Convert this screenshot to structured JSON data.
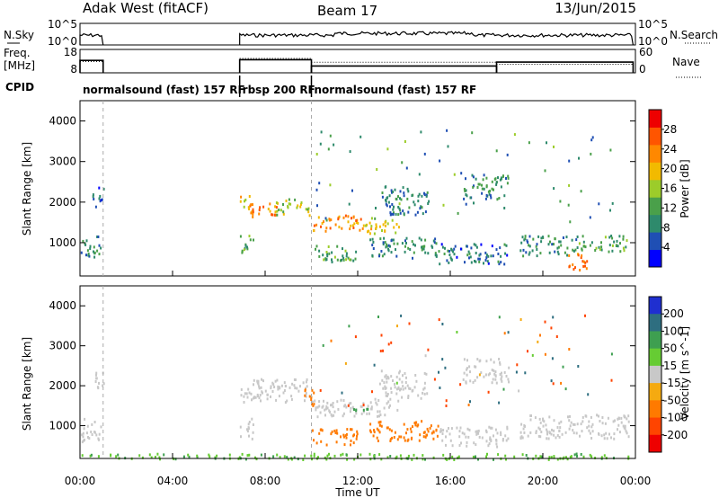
{
  "header": {
    "station": "Adak West (fitACF)",
    "beam": "Beam 17",
    "date": "13/Jun/2015"
  },
  "noise_panel": {
    "left_label": "N.Sky",
    "right_label": "N.Search",
    "left_ticks": [
      "10^5",
      "10^0"
    ],
    "right_ticks": [
      "10^5",
      "10^0"
    ],
    "level_fraction": 0.45,
    "data_intervals_ut_hours": [
      [
        0.0,
        1.0
      ],
      [
        6.9,
        23.9
      ]
    ]
  },
  "freq_panel": {
    "left_label_top": "Freq.",
    "left_label_bottom": "[MHz]",
    "right_label": "Nave",
    "left_ticks": [
      "18",
      "8"
    ],
    "right_ticks": [
      "60",
      "0"
    ],
    "freq_ylim": [
      8,
      18
    ],
    "nave_ylim": [
      0,
      60
    ],
    "freq_segments": [
      {
        "start": 0.0,
        "end": 1.0,
        "freq": 13.3
      },
      {
        "start": 6.9,
        "end": 10.0,
        "freq": 13.6
      },
      {
        "start": 10.0,
        "end": 18.0,
        "freq": 10.9
      },
      {
        "start": 18.0,
        "end": 23.9,
        "freq": 12.6
      }
    ],
    "nave_segments": [
      {
        "start": 0.0,
        "end": 1.0,
        "nave": 29
      },
      {
        "start": 6.9,
        "end": 10.0,
        "nave": 37
      },
      {
        "start": 10.0,
        "end": 18.0,
        "nave": 27
      },
      {
        "start": 18.0,
        "end": 23.9,
        "nave": 22
      }
    ]
  },
  "cpid": {
    "label": "CPID",
    "segments": [
      {
        "start": 0.0,
        "end": 6.9,
        "text": "normalsound (fast) 157 RF"
      },
      {
        "start": 6.9,
        "end": 10.0,
        "text": "rbsp 200 RF"
      },
      {
        "start": 10.0,
        "end": 24.0,
        "text": "normalsound (fast) 157 RF"
      }
    ]
  },
  "time_axis": {
    "label": "Time UT",
    "range_hours": [
      0,
      24
    ],
    "ticks": [
      {
        "h": 0,
        "label": "00:00"
      },
      {
        "h": 4,
        "label": "04:00"
      },
      {
        "h": 8,
        "label": "08:00"
      },
      {
        "h": 12,
        "label": "12:00"
      },
      {
        "h": 16,
        "label": "16:00"
      },
      {
        "h": 20,
        "label": "20:00"
      },
      {
        "h": 24,
        "label": "00:00"
      }
    ],
    "dashed_lines_hours": [
      1.0,
      10.0
    ]
  },
  "range_axis": {
    "label": "Slant Range [km]",
    "range_km": [
      180,
      4500
    ],
    "ticks": [
      1000,
      2000,
      3000,
      4000
    ]
  },
  "power_colorbar": {
    "title": "Power [dB]",
    "range": [
      0,
      32
    ],
    "ticks": [
      "28",
      "24",
      "20",
      "16",
      "12",
      "8",
      "4"
    ],
    "tick_values": [
      28,
      24,
      20,
      16,
      12,
      8,
      4
    ],
    "colors": [
      "#0000ff",
      "#1f4fb4",
      "#2e8a6c",
      "#4aa04a",
      "#9ccc2a",
      "#f2ba00",
      "#ff8800",
      "#ff5500",
      "#ee0000"
    ]
  },
  "velocity_colorbar": {
    "title": "Velocity [m s^-1]",
    "ticks": [
      "200",
      "100",
      "50",
      "15",
      "-15",
      "-50",
      "-100",
      "-200"
    ],
    "bands": [
      {
        "color": "#1f2fd0"
      },
      {
        "color": "#2e6e80"
      },
      {
        "color": "#3e9f50"
      },
      {
        "color": "#66cc33"
      },
      {
        "color": "#c8c8c8"
      },
      {
        "color": "#f5aa10"
      },
      {
        "color": "#ff7a00"
      },
      {
        "color": "#ff4400"
      },
      {
        "color": "#ee0000"
      }
    ]
  },
  "chart_data": {
    "type": "heatmap",
    "x_unit": "UT hour",
    "y_unit": "km",
    "power_dB": [
      {
        "t0": 0.0,
        "t1": 0.9,
        "r0": 620,
        "r1": 1200,
        "value": 9
      },
      {
        "t0": 0.5,
        "t1": 1.0,
        "r0": 1900,
        "r1": 2400,
        "value": 6
      },
      {
        "t0": 6.9,
        "t1": 7.3,
        "r0": 1800,
        "r1": 2200,
        "value": 18
      },
      {
        "t0": 7.2,
        "t1": 8.5,
        "r0": 1600,
        "r1": 2000,
        "value": 23
      },
      {
        "t0": 8.4,
        "t1": 9.9,
        "r0": 1700,
        "r1": 2100,
        "value": 16
      },
      {
        "t0": 6.9,
        "t1": 7.5,
        "r0": 700,
        "r1": 1200,
        "value": 12
      },
      {
        "t0": 10.0,
        "t1": 12.2,
        "r0": 1300,
        "r1": 1700,
        "value": 22
      },
      {
        "t0": 12.2,
        "t1": 13.8,
        "r0": 1250,
        "r1": 1650,
        "value": 18
      },
      {
        "t0": 10.0,
        "t1": 12.0,
        "r0": 550,
        "r1": 950,
        "value": 12
      },
      {
        "t0": 12.5,
        "t1": 15.5,
        "r0": 650,
        "r1": 1150,
        "value": 9
      },
      {
        "t0": 13.0,
        "t1": 15.0,
        "r0": 1700,
        "r1": 2400,
        "value": 8
      },
      {
        "t0": 15.5,
        "t1": 18.5,
        "r0": 500,
        "r1": 1000,
        "value": 7
      },
      {
        "t0": 19.0,
        "t1": 21.5,
        "r0": 700,
        "r1": 1200,
        "value": 9
      },
      {
        "t0": 21.0,
        "t1": 22.0,
        "r0": 350,
        "r1": 750,
        "value": 24
      },
      {
        "t0": 21.5,
        "t1": 23.7,
        "r0": 800,
        "r1": 1200,
        "value": 12
      },
      {
        "t0": 16.5,
        "t1": 18.5,
        "r0": 2100,
        "r1": 2700,
        "value": 10
      }
    ],
    "velocity_ms": [
      {
        "t0": 0.0,
        "t1": 0.9,
        "r0": 620,
        "r1": 1200,
        "value": 0
      },
      {
        "t0": 0.5,
        "t1": 1.0,
        "r0": 1900,
        "r1": 2400,
        "value": 0
      },
      {
        "t0": 6.9,
        "t1": 9.9,
        "r0": 1600,
        "r1": 2200,
        "value": 0
      },
      {
        "t0": 6.9,
        "t1": 7.5,
        "r0": 700,
        "r1": 1200,
        "value": 0
      },
      {
        "t0": 10.0,
        "t1": 13.8,
        "r0": 1250,
        "r1": 1700,
        "value": 0
      },
      {
        "t0": 9.6,
        "t1": 10.1,
        "r0": 1500,
        "r1": 2000,
        "value": -60
      },
      {
        "t0": 10.0,
        "t1": 12.0,
        "r0": 550,
        "r1": 950,
        "value": -40
      },
      {
        "t0": 12.5,
        "t1": 15.5,
        "r0": 650,
        "r1": 1150,
        "value": -45
      },
      {
        "t0": 11.8,
        "t1": 12.5,
        "r0": 1300,
        "r1": 1500,
        "value": 40
      },
      {
        "t0": 13.0,
        "t1": 15.0,
        "r0": 1700,
        "r1": 2400,
        "value": 0
      },
      {
        "t0": 15.5,
        "t1": 18.5,
        "r0": 500,
        "r1": 1000,
        "value": 0
      },
      {
        "t0": 19.0,
        "t1": 23.7,
        "r0": 700,
        "r1": 1300,
        "value": 0
      },
      {
        "t0": 0.0,
        "t1": 23.9,
        "r0": 180,
        "r1": 330,
        "value": 30
      },
      {
        "t0": 16.5,
        "t1": 18.5,
        "r0": 2100,
        "r1": 2700,
        "value": 0
      }
    ]
  }
}
